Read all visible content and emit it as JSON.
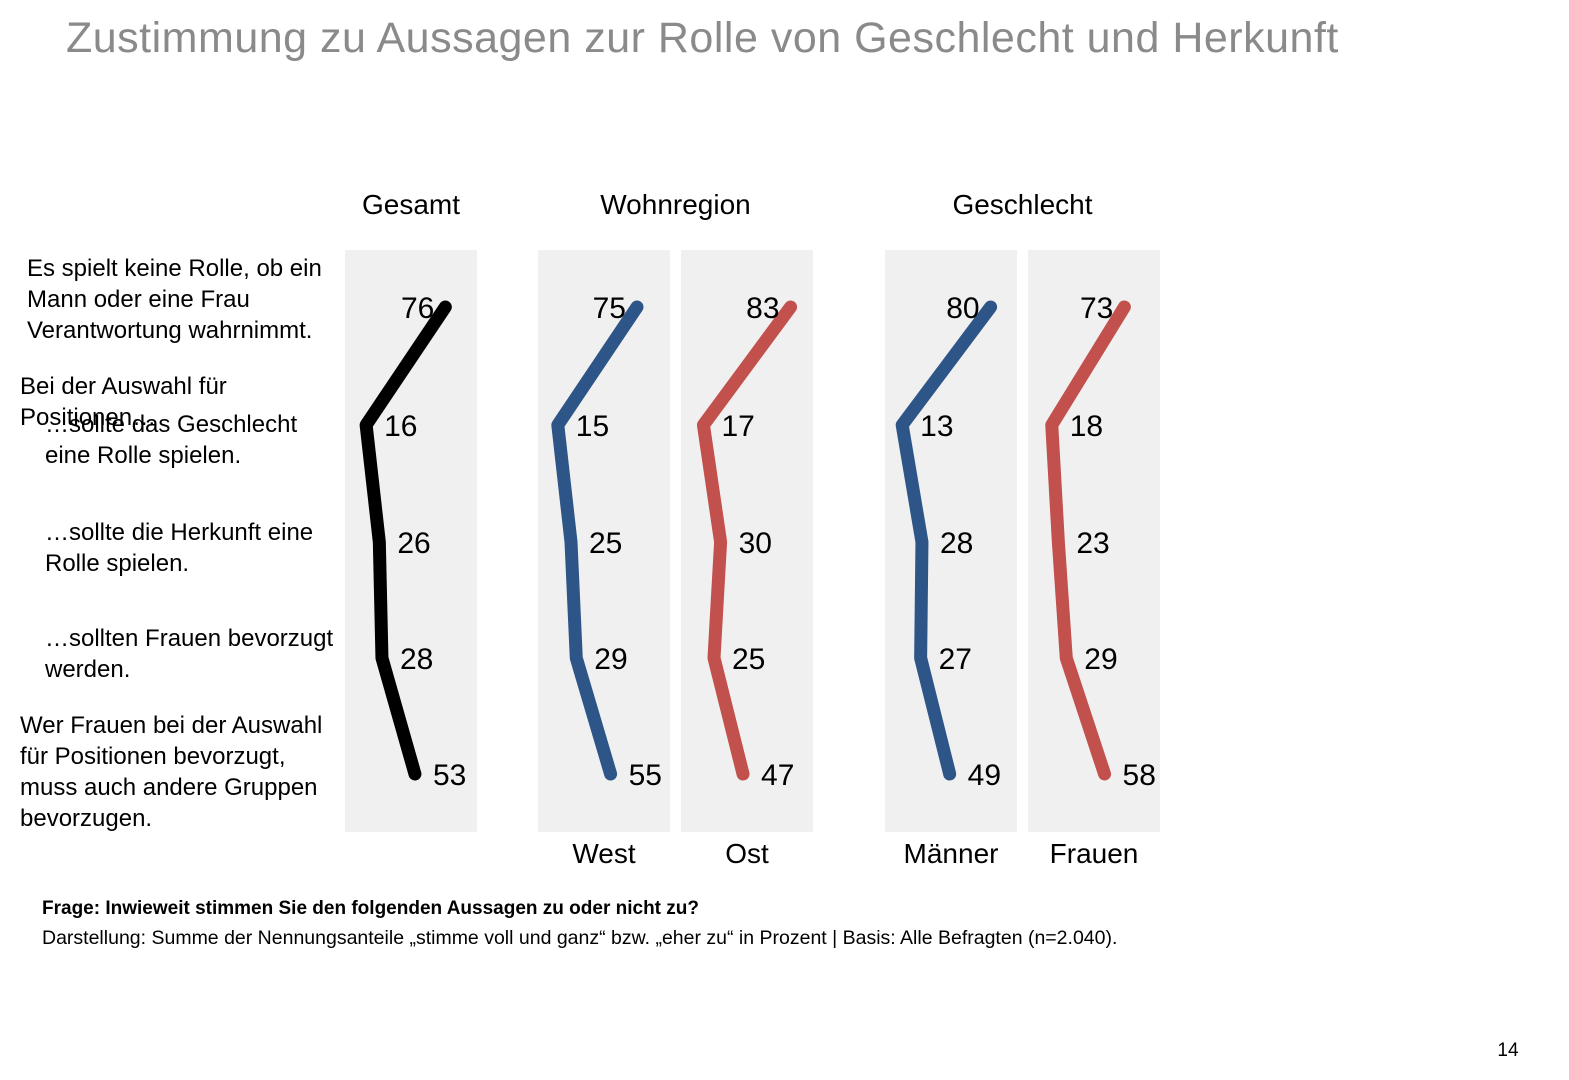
{
  "title": "Zustimmung zu Aussagen zur Rolle von Geschlecht und Herkunft",
  "page_number": "14",
  "footer": {
    "question": "Frage: Inwieweit stimmen Sie den folgenden Aussagen zu oder nicht zu?",
    "note": "Darstellung: Summe der Nennungsanteile „stimme voll und ganz“ bzw. „eher zu“ in Prozent | Basis: Alle Befragten (n=2.040)."
  },
  "statement_labels": [
    {
      "lines": [
        "Es spielt keine Rolle, ob ein",
        "Mann oder eine Frau",
        "Verantwortung wahrnimmt."
      ]
    },
    {
      "lines": [
        "Bei der Auswahl für",
        "Positionen…"
      ]
    },
    {
      "lines": [
        "…sollte das Geschlecht",
        "eine Rolle spielen."
      ]
    },
    {
      "lines": [
        "…sollte die Herkunft eine",
        "Rolle spielen."
      ]
    },
    {
      "lines": [
        "…sollten Frauen bevorzugt",
        "werden."
      ]
    },
    {
      "lines": [
        "Wer Frauen bei der Auswahl",
        "für Positionen bevorzugt,",
        "muss auch andere Gruppen",
        "bevorzugen."
      ]
    }
  ],
  "chart_data": {
    "type": "line",
    "orientation": "vertical-profile",
    "title": "Zustimmung zu Aussagen zur Rolle von Geschlecht und Herkunft",
    "unit": "Prozent",
    "value_range": [
      0,
      100
    ],
    "categories": [
      "Es spielt keine Rolle, ob ein Mann oder eine Frau Verantwortung wahrnimmt.",
      "Bei der Auswahl für Positionen… …sollte das Geschlecht eine Rolle spielen.",
      "…sollte die Herkunft eine Rolle spielen.",
      "…sollten Frauen bevorzugt werden.",
      "Wer Frauen bei der Auswahl für Positionen bevorzugt, muss auch andere Gruppen bevorzugen."
    ],
    "groups": [
      "Gesamt",
      "Wohnregion",
      "Geschlecht"
    ],
    "series": [
      {
        "name": "Gesamt",
        "group": "Gesamt",
        "bottom_label": "",
        "color": "#000000",
        "values": [
          76,
          16,
          26,
          28,
          53
        ]
      },
      {
        "name": "West",
        "group": "Wohnregion",
        "bottom_label": "West",
        "color": "#2d5587",
        "values": [
          75,
          15,
          25,
          29,
          55
        ]
      },
      {
        "name": "Ost",
        "group": "Wohnregion",
        "bottom_label": "Ost",
        "color": "#c2504c",
        "values": [
          83,
          17,
          30,
          25,
          47
        ]
      },
      {
        "name": "Männer",
        "group": "Geschlecht",
        "bottom_label": "Männer",
        "color": "#2d5587",
        "values": [
          80,
          13,
          28,
          27,
          49
        ]
      },
      {
        "name": "Frauen",
        "group": "Geschlecht",
        "bottom_label": "Frauen",
        "color": "#c2504c",
        "values": [
          73,
          18,
          23,
          29,
          58
        ]
      }
    ],
    "panel_background": "#f0f0f0",
    "grid": false,
    "legend": "none"
  }
}
